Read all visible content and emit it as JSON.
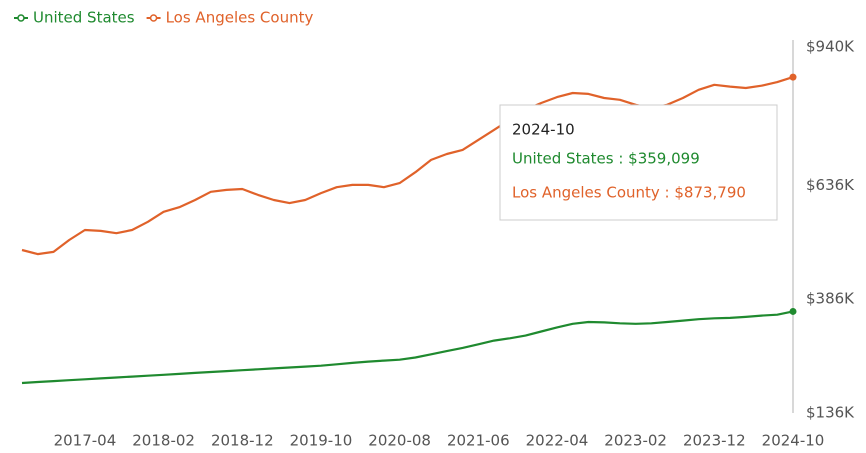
{
  "chart_data": {
    "type": "line",
    "categories": [
      null,
      null,
      null,
      null,
      "2017-04",
      null,
      null,
      null,
      null,
      "2018-02",
      null,
      null,
      null,
      null,
      "2018-12",
      null,
      null,
      null,
      null,
      "2019-10",
      null,
      null,
      null,
      null,
      "2020-08",
      null,
      null,
      null,
      null,
      "2021-06",
      null,
      null,
      null,
      null,
      "2022-04",
      null,
      null,
      null,
      null,
      "2023-02",
      null,
      null,
      null,
      null,
      "2023-12",
      null,
      null,
      null,
      null,
      "2024-10"
    ],
    "series": [
      {
        "name": "United States",
        "color": "#1f8a2f",
        "values": [
          202000,
          204000,
          206000,
          208000,
          210000,
          212000,
          214000,
          216000,
          218000,
          220000,
          222000,
          224000,
          226000,
          228000,
          230000,
          232000,
          234000,
          236000,
          238000,
          240000,
          243000,
          246000,
          249000,
          251000,
          253000,
          258000,
          265000,
          272000,
          279000,
          287000,
          295000,
          300000,
          306000,
          315000,
          324000,
          332000,
          336000,
          335000,
          333000,
          332000,
          333000,
          336000,
          339000,
          342000,
          344000,
          345000,
          347000,
          350000,
          352000,
          359099
        ]
      },
      {
        "name": "Los Angeles County",
        "color": "#e0622a",
        "values": [
          494000,
          485000,
          490000,
          516000,
          538000,
          536000,
          531000,
          538000,
          556000,
          578000,
          588000,
          604000,
          622000,
          626000,
          628000,
          615000,
          604000,
          597000,
          604000,
          619000,
          632000,
          637000,
          637000,
          632000,
          641000,
          665000,
          692000,
          705000,
          714000,
          736000,
          758000,
          780000,
          802000,
          817000,
          830000,
          839000,
          837000,
          828000,
          824000,
          813000,
          806000,
          813000,
          828000,
          846000,
          857000,
          853000,
          850000,
          855000,
          863000,
          873790
        ]
      }
    ],
    "ylim": [
      136000,
      940000
    ],
    "yticks": [
      {
        "value": 136000,
        "label": "$136K"
      },
      {
        "value": 386000,
        "label": "$386K"
      },
      {
        "value": 636000,
        "label": "$636K"
      },
      {
        "value": 940000,
        "label": "$940K"
      }
    ],
    "legend": "top-left",
    "tooltip": {
      "title": "2024-10",
      "lines": [
        "United States : $359,099",
        "Los Angeles County : $873,790"
      ]
    }
  }
}
